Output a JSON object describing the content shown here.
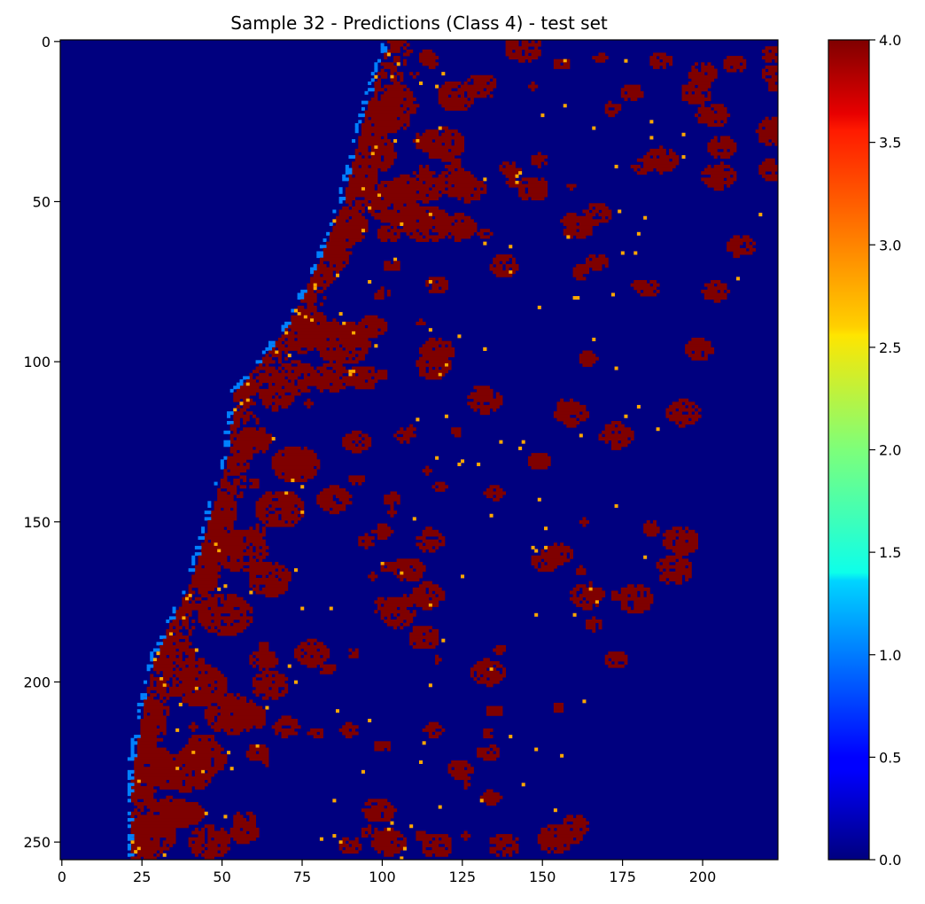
{
  "chart_data": {
    "type": "heatmap",
    "title": "Sample 32 - Predictions (Class 4) - test set",
    "xlabel": "",
    "ylabel": "",
    "x_range": [
      -0.5,
      223.5
    ],
    "y_range": [
      -0.5,
      255.5
    ],
    "x_ticks": [
      0,
      25,
      50,
      75,
      100,
      125,
      150,
      175,
      200
    ],
    "y_ticks": [
      0,
      50,
      100,
      150,
      200,
      250
    ],
    "colorbar": {
      "colormap": "jet",
      "range": [
        0.0,
        4.0
      ],
      "ticks": [
        "0.0",
        "0.5",
        "1.0",
        "1.5",
        "2.0",
        "2.5",
        "3.0",
        "3.5",
        "4.0"
      ]
    },
    "class_colors": {
      "0": "#00007f",
      "1": "#0080ff",
      "3": "#ffa700",
      "4": "#7f0000"
    },
    "grid": false
  }
}
